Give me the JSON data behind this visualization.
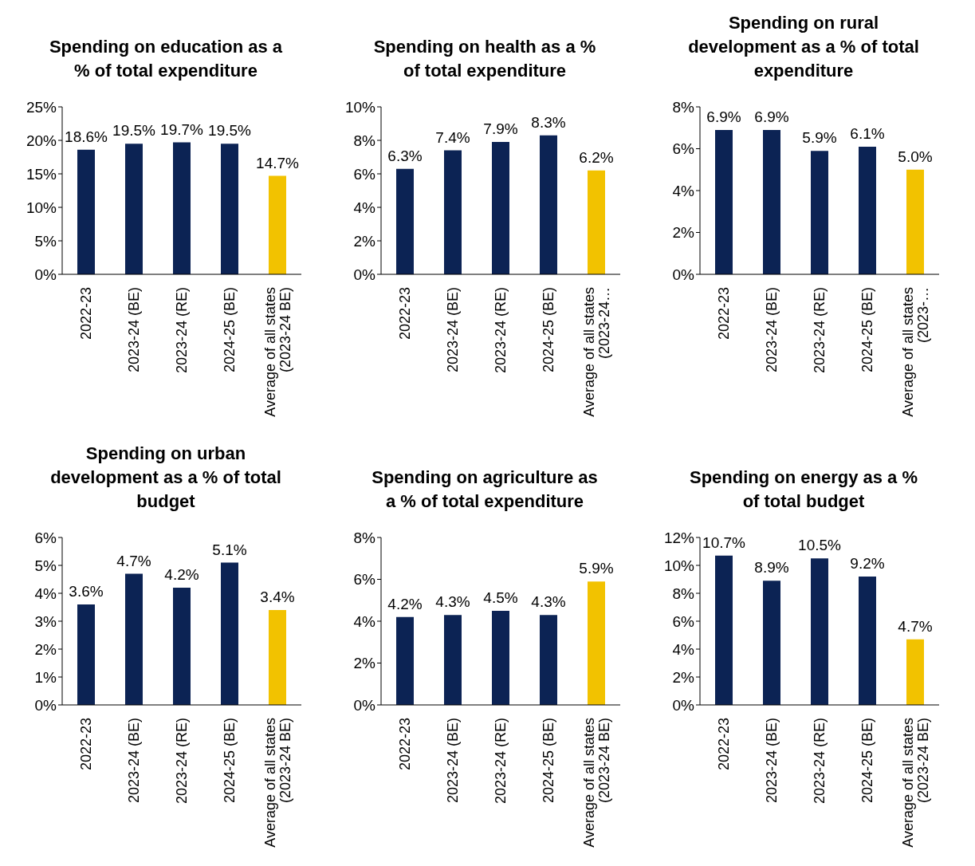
{
  "chart_data": [
    {
      "type": "bar",
      "title": "Spending on education as a % of total expenditure",
      "categories": [
        "2022-23",
        "2023-24 (BE)",
        "2023-24 (RE)",
        "2024-25 (BE)",
        "Average of all states (2023-24 BE)"
      ],
      "values": [
        18.6,
        19.5,
        19.7,
        19.5,
        14.7
      ],
      "value_labels": [
        "18.6%",
        "19.5%",
        "19.7%",
        "19.5%",
        "14.7%"
      ],
      "colors": [
        "#0c2354",
        "#0c2354",
        "#0c2354",
        "#0c2354",
        "#f2c200"
      ],
      "ylim": [
        0,
        25
      ],
      "yticks": [
        {
          "value": 0,
          "label": "0%"
        },
        {
          "value": 5,
          "label": "5%"
        },
        {
          "value": 10,
          "label": "10%"
        },
        {
          "value": 15,
          "label": "15%"
        },
        {
          "value": 20,
          "label": "20%"
        },
        {
          "value": 25,
          "label": "25%"
        }
      ],
      "grid": false,
      "legend": false
    },
    {
      "type": "bar",
      "title": "Spending on health as a % of total expenditure",
      "categories": [
        "2022-23",
        "2023-24 (BE)",
        "2023-24 (RE)",
        "2024-25 (BE)",
        "Average of all states (2023-24…"
      ],
      "values": [
        6.3,
        7.4,
        7.9,
        8.3,
        6.2
      ],
      "value_labels": [
        "6.3%",
        "7.4%",
        "7.9%",
        "8.3%",
        "6.2%"
      ],
      "colors": [
        "#0c2354",
        "#0c2354",
        "#0c2354",
        "#0c2354",
        "#f2c200"
      ],
      "ylim": [
        0,
        10
      ],
      "yticks": [
        {
          "value": 0,
          "label": "0%"
        },
        {
          "value": 2,
          "label": "2%"
        },
        {
          "value": 4,
          "label": "4%"
        },
        {
          "value": 6,
          "label": "6%"
        },
        {
          "value": 8,
          "label": "8%"
        },
        {
          "value": 10,
          "label": "10%"
        }
      ],
      "grid": false,
      "legend": false
    },
    {
      "type": "bar",
      "title": "Spending on rural development as a % of total expenditure",
      "categories": [
        "2022-23",
        "2023-24 (BE)",
        "2023-24 (RE)",
        "2024-25 (BE)",
        "Average of all states (2023-…"
      ],
      "values": [
        6.9,
        6.9,
        5.9,
        6.1,
        5.0
      ],
      "value_labels": [
        "6.9%",
        "6.9%",
        "5.9%",
        "6.1%",
        "5.0%"
      ],
      "colors": [
        "#0c2354",
        "#0c2354",
        "#0c2354",
        "#0c2354",
        "#f2c200"
      ],
      "ylim": [
        0,
        8
      ],
      "yticks": [
        {
          "value": 0,
          "label": "0%"
        },
        {
          "value": 2,
          "label": "2%"
        },
        {
          "value": 4,
          "label": "4%"
        },
        {
          "value": 6,
          "label": "6%"
        },
        {
          "value": 8,
          "label": "8%"
        }
      ],
      "grid": false,
      "legend": false
    },
    {
      "type": "bar",
      "title": "Spending on urban development as a % of total budget",
      "categories": [
        "2022-23",
        "2023-24 (BE)",
        "2023-24 (RE)",
        "2024-25 (BE)",
        "Average of all states (2023-24 BE)"
      ],
      "values": [
        3.6,
        4.7,
        4.2,
        5.1,
        3.4
      ],
      "value_labels": [
        "3.6%",
        "4.7%",
        "4.2%",
        "5.1%",
        "3.4%"
      ],
      "colors": [
        "#0c2354",
        "#0c2354",
        "#0c2354",
        "#0c2354",
        "#f2c200"
      ],
      "ylim": [
        0,
        6
      ],
      "yticks": [
        {
          "value": 0,
          "label": "0%"
        },
        {
          "value": 1,
          "label": "1%"
        },
        {
          "value": 2,
          "label": "2%"
        },
        {
          "value": 3,
          "label": "3%"
        },
        {
          "value": 4,
          "label": "4%"
        },
        {
          "value": 5,
          "label": "5%"
        },
        {
          "value": 6,
          "label": "6%"
        }
      ],
      "grid": false,
      "legend": false
    },
    {
      "type": "bar",
      "title": "Spending on agriculture as a % of total expenditure",
      "categories": [
        "2022-23",
        "2023-24 (BE)",
        "2023-24 (RE)",
        "2024-25 (BE)",
        "Average of all states (2023-24 BE)"
      ],
      "values": [
        4.2,
        4.3,
        4.5,
        4.3,
        5.9
      ],
      "value_labels": [
        "4.2%",
        "4.3%",
        "4.5%",
        "4.3%",
        "5.9%"
      ],
      "colors": [
        "#0c2354",
        "#0c2354",
        "#0c2354",
        "#0c2354",
        "#f2c200"
      ],
      "ylim": [
        0,
        8
      ],
      "yticks": [
        {
          "value": 0,
          "label": "0%"
        },
        {
          "value": 2,
          "label": "2%"
        },
        {
          "value": 4,
          "label": "4%"
        },
        {
          "value": 6,
          "label": "6%"
        },
        {
          "value": 8,
          "label": "8%"
        }
      ],
      "grid": false,
      "legend": false
    },
    {
      "type": "bar",
      "title": "Spending on energy as a % of total budget",
      "categories": [
        "2022-23",
        "2023-24 (BE)",
        "2023-24 (RE)",
        "2024-25 (BE)",
        "Average of all states (2023-24 BE)"
      ],
      "values": [
        10.7,
        8.9,
        10.5,
        9.2,
        4.7
      ],
      "value_labels": [
        "10.7%",
        "8.9%",
        "10.5%",
        "9.2%",
        "4.7%"
      ],
      "colors": [
        "#0c2354",
        "#0c2354",
        "#0c2354",
        "#0c2354",
        "#f2c200"
      ],
      "ylim": [
        0,
        12
      ],
      "yticks": [
        {
          "value": 0,
          "label": "0%"
        },
        {
          "value": 2,
          "label": "2%"
        },
        {
          "value": 4,
          "label": "4%"
        },
        {
          "value": 6,
          "label": "6%"
        },
        {
          "value": 8,
          "label": "8%"
        },
        {
          "value": 10,
          "label": "10%"
        },
        {
          "value": 12,
          "label": "12%"
        }
      ],
      "grid": false,
      "legend": false
    }
  ]
}
